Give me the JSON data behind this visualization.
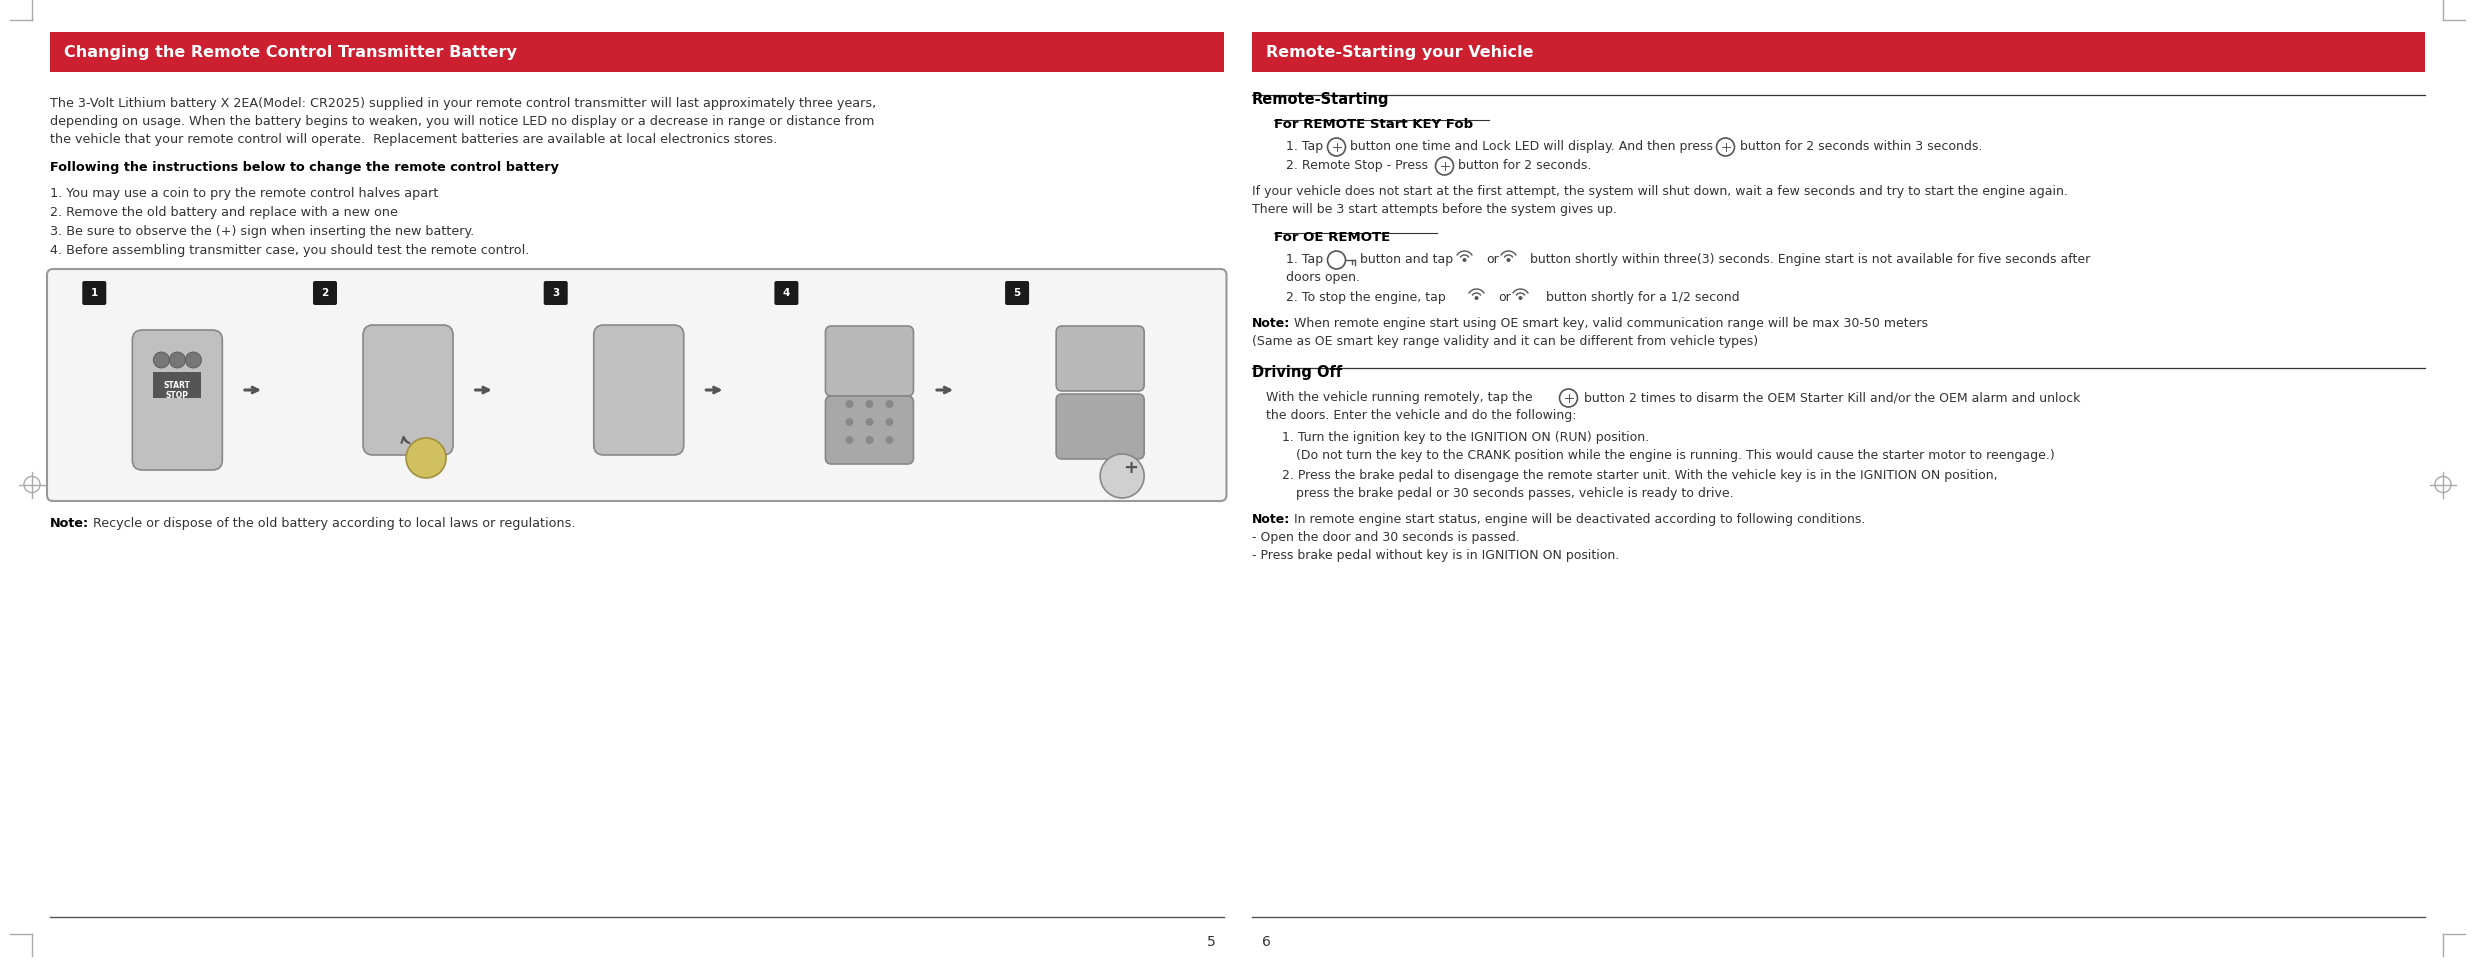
{
  "bg_color": "#ffffff",
  "header_bg_left": "#cc1f30",
  "header_bg_right": "#cc1f30",
  "header_text_left": "Changing the Remote Control Transmitter Battery",
  "header_text_right": "Remote-Starting your Vehicle",
  "header_text_color": "#ffffff",
  "body_text_color": "#333333",
  "bold_color": "#000000",
  "page_numbers": [
    "5",
    "6"
  ],
  "left_body_para_lines": [
    "The 3-Volt Lithium battery X 2EA(Model: CR2025) supplied in your remote control transmitter will last approximately three years,",
    "depending on usage. When the battery begins to weaken, you will notice LED no display or a decrease in range or distance from",
    "the vehicle that your remote control will operate.  Replacement batteries are available at local electronics stores."
  ],
  "left_bold_heading": "Following the instructions below to change the remote control battery",
  "left_steps": [
    "1. You may use a coin to pry the remote control halves apart",
    "2. Remove the old battery and replace with a new one",
    "3. Be sure to observe the (+) sign when inserting the new battery.",
    "4. Before assembling transmitter case, you should test the remote control."
  ],
  "left_note": "Recycle or dispose of the old battery according to local laws or regulations.",
  "right_section_title": "Remote-Starting",
  "right_sub1_title": "For REMOTE Start KEY Fob",
  "right_sub1_step1_parts": [
    "1. Tap ",
    " button one time and Lock LED will display. And then press ",
    " button for 2 seconds within 3 seconds."
  ],
  "right_sub1_step2_parts": [
    "2. Remote Stop - Press ",
    " button for 2 seconds."
  ],
  "right_para_between_lines": [
    "If your vehicle does not start at the first attempt, the system will shut down, wait a few seconds and try to start the engine again.",
    "There will be 3 start attempts before the system gives up."
  ],
  "right_sub2_title": "For OE REMOTE",
  "right_sub2_step1_parts": [
    "1. Tap ",
    " button and tap ",
    " or ",
    " button shortly within three(3) seconds. Engine start is not available for five seconds after"
  ],
  "right_sub2_step1b": "doors open.",
  "right_sub2_step2_parts": [
    "2. To stop the engine, tap ",
    " or ",
    "  button shortly for a 1/2 second"
  ],
  "right_note1a": "When remote engine start using OE smart key, valid communication range will be max 30-50 meters",
  "right_note1b": "(Same as OE smart key range validity and it can be different from vehicle types)",
  "right_driving_title": "Driving Off",
  "right_driving_para_parts": [
    "With the vehicle running remotely, tap the ",
    "  button 2 times to disarm the OEM Starter Kill and/or the OEM alarm and unlock"
  ],
  "right_driving_para_line2": "the doors. Enter the vehicle and do the following:",
  "right_driving_step1a": "1. Turn the ignition key to the IGNITION ON (RUN) position.",
  "right_driving_step1b": "(Do not turn the key to the CRANK position while the engine is running. This would cause the starter motor to reengage.)",
  "right_driving_step2a": "2. Press the brake pedal to disengage the remote starter unit. With the vehicle key is in the IGNITION ON position,",
  "right_driving_step2b": "press the brake pedal or 30 seconds passes, vehicle is ready to drive.",
  "right_note2a": "In remote engine start status, engine will be deactivated according to following conditions.",
  "right_note2b": "- Open the door and 30 seconds is passed.",
  "right_note2c": "- Press brake pedal without key is in IGNITION ON position."
}
